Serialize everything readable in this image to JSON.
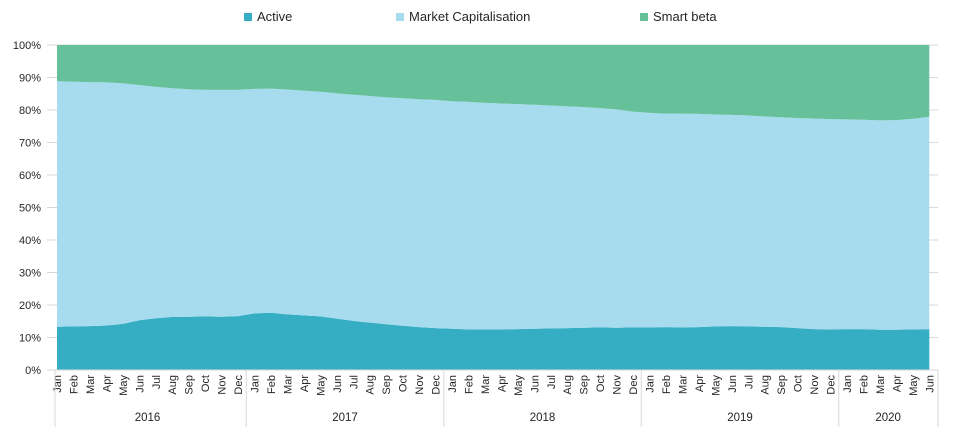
{
  "page": {
    "background": "#ffffff"
  },
  "legend": {
    "position": "top",
    "items": [
      {
        "label": "Active",
        "color": "#35ADC3",
        "x": 244
      },
      {
        "label": "Market Capitalisation",
        "color": "#A6DCEE",
        "x": 396
      },
      {
        "label": "Smart beta",
        "color": "#66C19B",
        "x": 640
      }
    ]
  },
  "y_axis": {
    "tick_labels": [
      "0%",
      "10%",
      "20%",
      "30%",
      "40%",
      "50%",
      "60%",
      "70%",
      "80%",
      "90%",
      "100%"
    ],
    "min": 0,
    "max": 100
  },
  "chart_data": {
    "type": "area",
    "subtype": "stacked-100-percent",
    "title": "",
    "xlabel": "",
    "ylabel": "",
    "ylim": [
      0,
      100
    ],
    "grid": true,
    "gridline_color": "#D9D9D9",
    "axis_text_color": "#262626",
    "legend_position": "top",
    "year_groups": [
      {
        "label": "2016",
        "n_months": 12
      },
      {
        "label": "2017",
        "n_months": 12
      },
      {
        "label": "2018",
        "n_months": 12
      },
      {
        "label": "2019",
        "n_months": 12
      },
      {
        "label": "2020",
        "n_months": 6
      }
    ],
    "month_labels": [
      "Jan",
      "Feb",
      "Mar",
      "Apr",
      "May",
      "Jun",
      "Jul",
      "Aug",
      "Sep",
      "Oct",
      "Nov",
      "Dec",
      "Jan",
      "Feb",
      "Mar",
      "Apr",
      "May",
      "Jun",
      "Jul",
      "Aug",
      "Sep",
      "Oct",
      "Nov",
      "Dec",
      "Jan",
      "Feb",
      "Mar",
      "Apr",
      "May",
      "Jun",
      "Jul",
      "Aug",
      "Sep",
      "Oct",
      "Nov",
      "Dec",
      "Jan",
      "Feb",
      "Mar",
      "Apr",
      "May",
      "Jun",
      "Jul",
      "Aug",
      "Sep",
      "Oct",
      "Nov",
      "Dec",
      "Jan",
      "Feb",
      "Mar",
      "Apr",
      "May",
      "Jun"
    ],
    "series": [
      {
        "name": "Active",
        "color": "#35ADC3",
        "values": [
          13.3,
          13.4,
          13.5,
          13.7,
          14.2,
          15.3,
          15.9,
          16.3,
          16.4,
          16.5,
          16.4,
          16.6,
          17.4,
          17.6,
          17.1,
          16.8,
          16.5,
          15.8,
          15.1,
          14.6,
          14.1,
          13.6,
          13.2,
          12.9,
          12.7,
          12.5,
          12.5,
          12.5,
          12.6,
          12.7,
          12.8,
          12.9,
          13.0,
          13.1,
          13.0,
          13.1,
          13.1,
          13.2,
          13.1,
          13.2,
          13.4,
          13.5,
          13.4,
          13.3,
          13.2,
          12.9,
          12.6,
          12.5,
          12.6,
          12.6,
          12.4,
          12.4,
          12.5,
          12.6
        ]
      },
      {
        "name": "Market Capitalisation",
        "color": "#A6DCEE",
        "values": [
          75.6,
          75.3,
          75.1,
          74.8,
          74.0,
          72.4,
          71.2,
          70.4,
          70.0,
          69.7,
          69.8,
          69.6,
          69.1,
          69.0,
          69.2,
          69.1,
          69.1,
          69.3,
          69.6,
          69.7,
          69.8,
          70.0,
          70.1,
          70.2,
          70.0,
          70.0,
          69.7,
          69.5,
          69.2,
          68.9,
          68.6,
          68.2,
          67.9,
          67.5,
          67.2,
          66.4,
          66.0,
          65.7,
          65.8,
          65.6,
          65.2,
          65.0,
          64.9,
          64.7,
          64.6,
          64.6,
          64.8,
          64.7,
          64.5,
          64.4,
          64.4,
          64.5,
          64.8,
          65.3
        ]
      },
      {
        "name": "Smart beta",
        "color": "#66C19B",
        "values": [
          11.1,
          11.3,
          11.4,
          11.5,
          11.8,
          12.3,
          12.9,
          13.3,
          13.6,
          13.8,
          13.8,
          13.8,
          13.5,
          13.4,
          13.7,
          14.1,
          14.4,
          14.9,
          15.3,
          15.7,
          16.1,
          16.4,
          16.7,
          16.9,
          17.3,
          17.5,
          17.8,
          18.0,
          18.2,
          18.4,
          18.6,
          18.9,
          19.1,
          19.4,
          19.8,
          20.5,
          20.9,
          21.1,
          21.1,
          21.2,
          21.4,
          21.5,
          21.7,
          22.0,
          22.2,
          22.5,
          22.6,
          22.8,
          22.9,
          23.0,
          23.2,
          23.1,
          22.7,
          22.1
        ]
      }
    ]
  }
}
